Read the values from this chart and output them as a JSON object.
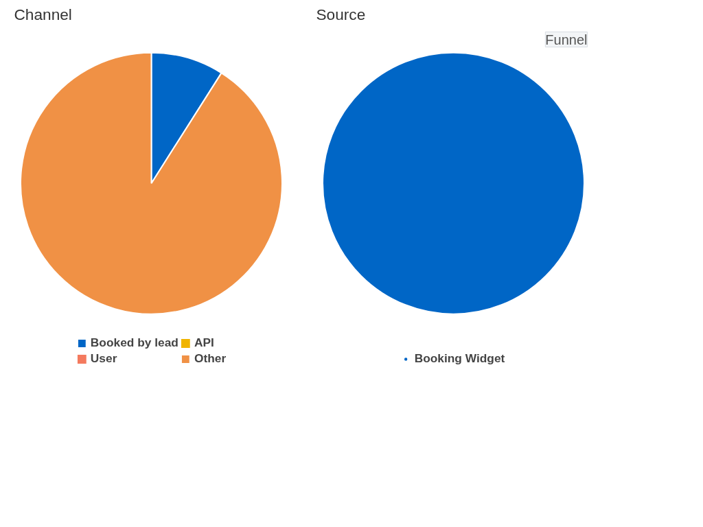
{
  "chart_data": [
    {
      "type": "pie",
      "title": "Channel",
      "categories": [
        "Booked by lead",
        "User",
        "API",
        "Other"
      ],
      "values": [
        9,
        0,
        0,
        91
      ],
      "colors": [
        "#0066c6",
        "#f47a5e",
        "#f0b400",
        "#f09145"
      ],
      "legend": "bottom"
    },
    {
      "type": "pie",
      "title": "Source",
      "categories": [
        "Booking Widget"
      ],
      "values": [
        100
      ],
      "colors": [
        "#0066c6"
      ],
      "legend": "bottom",
      "annotations": [
        "Funnel"
      ]
    }
  ]
}
